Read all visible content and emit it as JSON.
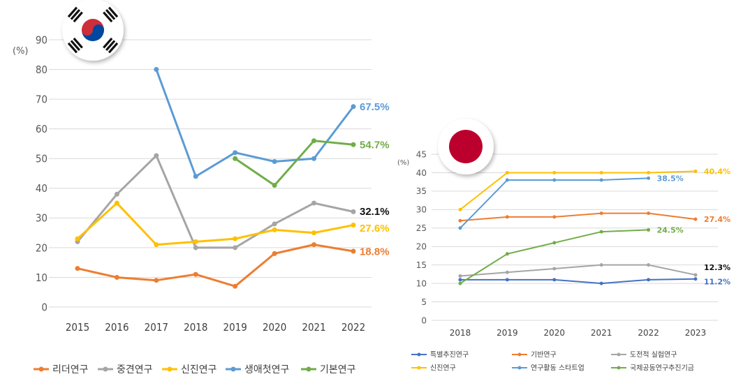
{
  "chart_data": [
    {
      "type": "line",
      "flag_icon": "south-korea-flag-icon",
      "unit_label": "(%)",
      "x": [
        "2015",
        "2016",
        "2017",
        "2018",
        "2019",
        "2020",
        "2021",
        "2022"
      ],
      "ylim": [
        0,
        90
      ],
      "yticks": [
        0,
        10,
        20,
        30,
        40,
        50,
        60,
        70,
        80,
        90
      ],
      "ytick_labels": [
        "0",
        "10",
        "20",
        "30",
        "40",
        "50",
        "60",
        "70",
        "80",
        "90"
      ],
      "grid": true,
      "legend_position": "bottom",
      "series": [
        {
          "name": "리더연구",
          "color": "#ed7d31",
          "values": [
            13,
            10,
            9,
            11,
            7,
            18,
            21,
            18.8
          ],
          "end_label": "18.8%"
        },
        {
          "name": "중견연구",
          "color": "#a5a5a5",
          "values": [
            22,
            38,
            51,
            20,
            20,
            28,
            35,
            32.1
          ],
          "end_label": "32.1%",
          "end_label_color": "#111111"
        },
        {
          "name": "신진연구",
          "color": "#ffc000",
          "values": [
            23,
            35,
            21,
            22,
            23,
            26,
            25,
            27.6
          ],
          "end_label": "27.6%"
        },
        {
          "name": "생애첫연구",
          "color": "#5b9bd5",
          "values": [
            null,
            null,
            80,
            44,
            52,
            49,
            50,
            67.5
          ],
          "end_label": "67.5%"
        },
        {
          "name": "기본연구",
          "color": "#70ad47",
          "values": [
            null,
            null,
            null,
            null,
            50,
            41,
            56,
            54.7
          ],
          "end_label": "54.7%"
        }
      ]
    },
    {
      "type": "line",
      "flag_icon": "japan-flag-icon",
      "unit_label": "(%)",
      "x": [
        "2018",
        "2019",
        "2020",
        "2021",
        "2022",
        "2023"
      ],
      "ylim": [
        0,
        45
      ],
      "yticks": [
        0,
        5,
        10,
        15,
        20,
        25,
        30,
        35,
        40,
        45
      ],
      "ytick_labels": [
        "0",
        "5",
        "10",
        "15",
        "20",
        "25",
        "30",
        "35",
        "40",
        "45"
      ],
      "grid": true,
      "legend_position": "bottom",
      "series": [
        {
          "name": "특별추진연구",
          "color": "#4472c4",
          "values": [
            11,
            11,
            11,
            10,
            11,
            11.2
          ],
          "end_label": "11.2%"
        },
        {
          "name": "기반연구",
          "color": "#ed7d31",
          "values": [
            27,
            28,
            28,
            29,
            29,
            27.4
          ],
          "end_label": "27.4%"
        },
        {
          "name": "도전적 실험연구",
          "color": "#a5a5a5",
          "values": [
            12,
            13,
            14,
            15,
            15,
            12.3
          ],
          "end_label": "12.3%",
          "end_label_color": "#111111"
        },
        {
          "name": "신진연구",
          "color": "#ffc000",
          "values": [
            30,
            40,
            40,
            40,
            40,
            40.4
          ],
          "end_label": "40.4%"
        },
        {
          "name": "연구활동 스타트업",
          "color": "#5b9bd5",
          "values": [
            25,
            38,
            38,
            38,
            38.5,
            null
          ],
          "end_label": "38.5%"
        },
        {
          "name": "국제공동연구추진기금",
          "color": "#70ad47",
          "values": [
            10,
            18,
            21,
            24,
            24.5,
            null
          ],
          "end_label": "24.5%"
        }
      ]
    }
  ]
}
